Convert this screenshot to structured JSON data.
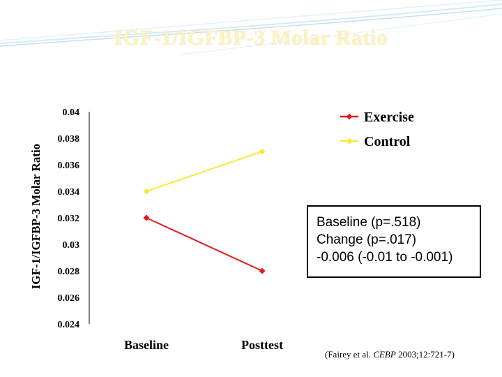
{
  "slide": {
    "title": "IGF-1/IGFBP-3 Molar Ratio",
    "stats": [
      "Baseline (p=.518)",
      "Change  (p=.017)",
      "-0.006 (-0.01 to -0.001)"
    ],
    "citation": {
      "prefix": "(Fairey et al. ",
      "journal": "CEBP",
      "suffix": " 2003;12:721-7)"
    }
  },
  "chart_data": {
    "type": "line",
    "title": "IGF-1/IGFBP-3 Molar Ratio",
    "xlabel": "",
    "ylabel": "IGF-1/IGFBP-3 Molar Ratio",
    "categories": [
      "Baseline",
      "Posttest"
    ],
    "yticks": [
      "0.04",
      "0.038",
      "0.036",
      "0.034",
      "0.032",
      "0.03",
      "0.028",
      "0.026",
      "0.024"
    ],
    "ylim": [
      0.024,
      0.04
    ],
    "grid": false,
    "legend_position": "top-right",
    "series": [
      {
        "name": "Exercise",
        "values": [
          0.032,
          0.028
        ],
        "color": "#e11b1b"
      },
      {
        "name": "Control",
        "values": [
          0.034,
          0.037
        ],
        "color": "#f7e93a"
      }
    ]
  }
}
